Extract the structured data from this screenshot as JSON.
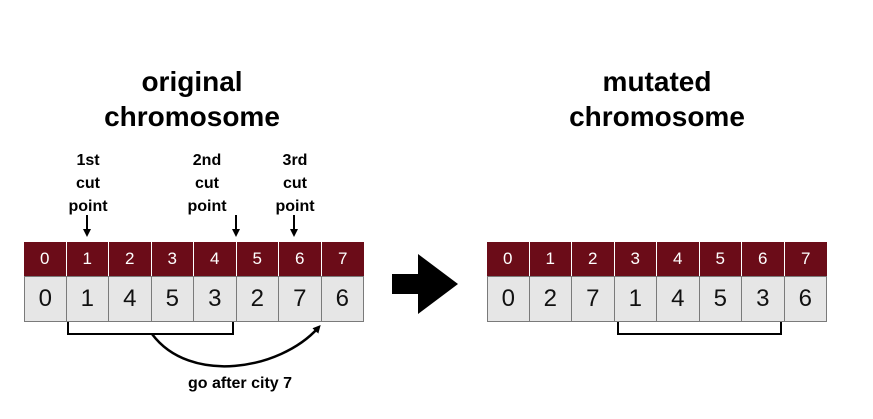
{
  "left_title": [
    "original",
    "chromosome"
  ],
  "right_title": [
    "mutated",
    "chromosome"
  ],
  "cut_points": [
    [
      "1st",
      "cut",
      "point"
    ],
    [
      "2nd",
      "cut",
      "point"
    ],
    [
      "3rd",
      "cut",
      "point"
    ]
  ],
  "original": {
    "indices": [
      "0",
      "1",
      "2",
      "3",
      "4",
      "5",
      "6",
      "7"
    ],
    "values": [
      "0",
      "1",
      "4",
      "5",
      "3",
      "2",
      "7",
      "6"
    ]
  },
  "mutated": {
    "indices": [
      "0",
      "1",
      "2",
      "3",
      "4",
      "5",
      "6",
      "7"
    ],
    "values": [
      "0",
      "2",
      "7",
      "1",
      "4",
      "5",
      "3",
      "6"
    ]
  },
  "annotation": "go after city 7",
  "colors": {
    "index_bg": "#6b0c18",
    "value_bg": "#e6e6e6"
  }
}
